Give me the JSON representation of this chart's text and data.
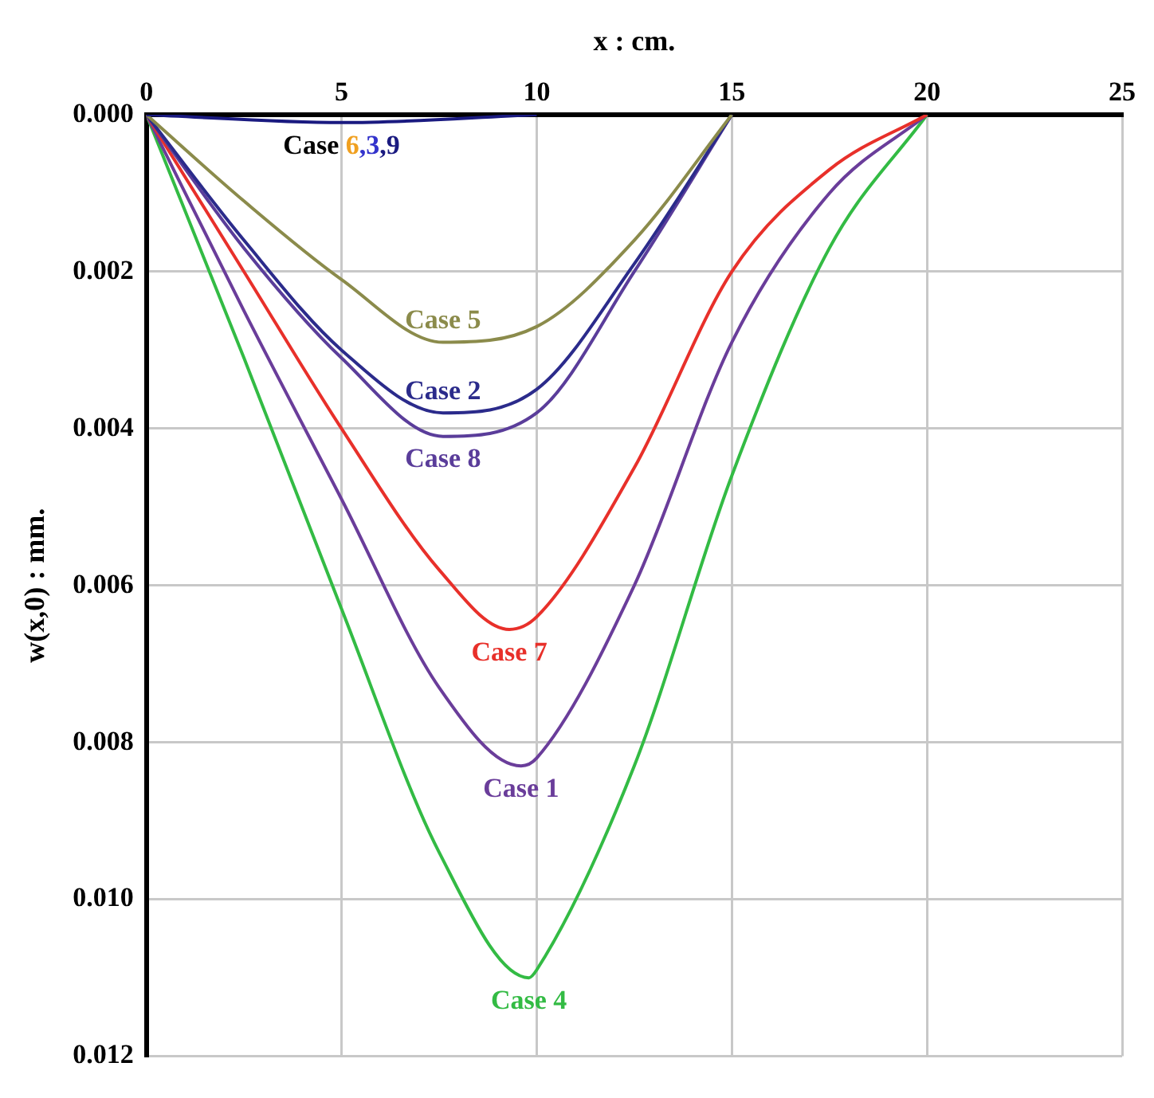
{
  "chart_data": {
    "type": "line",
    "xlabel": "x : cm.",
    "ylabel": "w(x,0) : mm.",
    "xlim": [
      0,
      25
    ],
    "xticks": [
      0,
      5,
      10,
      15,
      20,
      25
    ],
    "ylim": [
      0.012,
      0
    ],
    "yticks": [
      {
        "value": 0,
        "label": "0.000"
      },
      {
        "value": 0.002,
        "label": "0.002"
      },
      {
        "value": 0.004,
        "label": "0.004"
      },
      {
        "value": 0.006,
        "label": "0.006"
      },
      {
        "value": 0.008,
        "label": "0.008"
      },
      {
        "value": 0.01,
        "label": "0.010"
      },
      {
        "value": 0.012,
        "label": "0.012"
      }
    ],
    "grid": true,
    "legend": false,
    "marker": "none",
    "line_style": "solid",
    "annotations": [
      "Case",
      ","
    ],
    "series": [
      {
        "name": "6",
        "color": "#f0a020",
        "values": [
          null
        ]
      },
      {
        "name": "3",
        "color": "#3333cc",
        "values": [
          null
        ]
      },
      {
        "name": "9",
        "color": "#1a1a80",
        "x": [
          0,
          5,
          10
        ],
        "values": [
          0,
          0.0001,
          0
        ]
      },
      {
        "name": "Case 5",
        "color": "#8b8b4b",
        "x": [
          0,
          2.5,
          5,
          7.6,
          10,
          12.5,
          15
        ],
        "values": [
          0,
          0.0011,
          0.0021,
          0.0029,
          0.0027,
          0.0016,
          0
        ]
      },
      {
        "name": "Case 2",
        "color": "#2b2b8b",
        "x": [
          0,
          2.5,
          5,
          7.6,
          10,
          12.5,
          15
        ],
        "values": [
          0,
          0.0016,
          0.003,
          0.0038,
          0.0035,
          0.0019,
          0
        ]
      },
      {
        "name": "Case 8",
        "color": "#5a3d9a",
        "x": [
          0,
          2.5,
          5,
          7.6,
          10,
          12.5,
          15
        ],
        "values": [
          0,
          0.0017,
          0.0031,
          0.0041,
          0.0038,
          0.002,
          0
        ]
      },
      {
        "name": "Case 7",
        "color": "#e8302a",
        "x": [
          0,
          2.5,
          5,
          7.5,
          9.3,
          10,
          12.5,
          15,
          17.5,
          20
        ],
        "values": [
          0,
          0.002,
          0.004,
          0.0058,
          0.00656,
          0.0064,
          0.0045,
          0.002,
          0.0007,
          0
        ]
      },
      {
        "name": "Case 1",
        "color": "#6a3d9a",
        "x": [
          0,
          2.5,
          5,
          7.5,
          9.6,
          10,
          12.5,
          15,
          17.5,
          20
        ],
        "values": [
          0,
          0.0025,
          0.0049,
          0.0073,
          0.0083,
          0.0082,
          0.006,
          0.0029,
          0.001,
          0
        ]
      },
      {
        "name": "Case 4",
        "color": "#33bb44",
        "x": [
          0,
          2.5,
          5,
          7.5,
          9.8,
          10,
          12.5,
          15,
          17.5,
          20
        ],
        "values": [
          0,
          0.0031,
          0.0063,
          0.0094,
          0.011,
          0.0109,
          0.0083,
          0.0046,
          0.0017,
          0
        ]
      }
    ]
  }
}
